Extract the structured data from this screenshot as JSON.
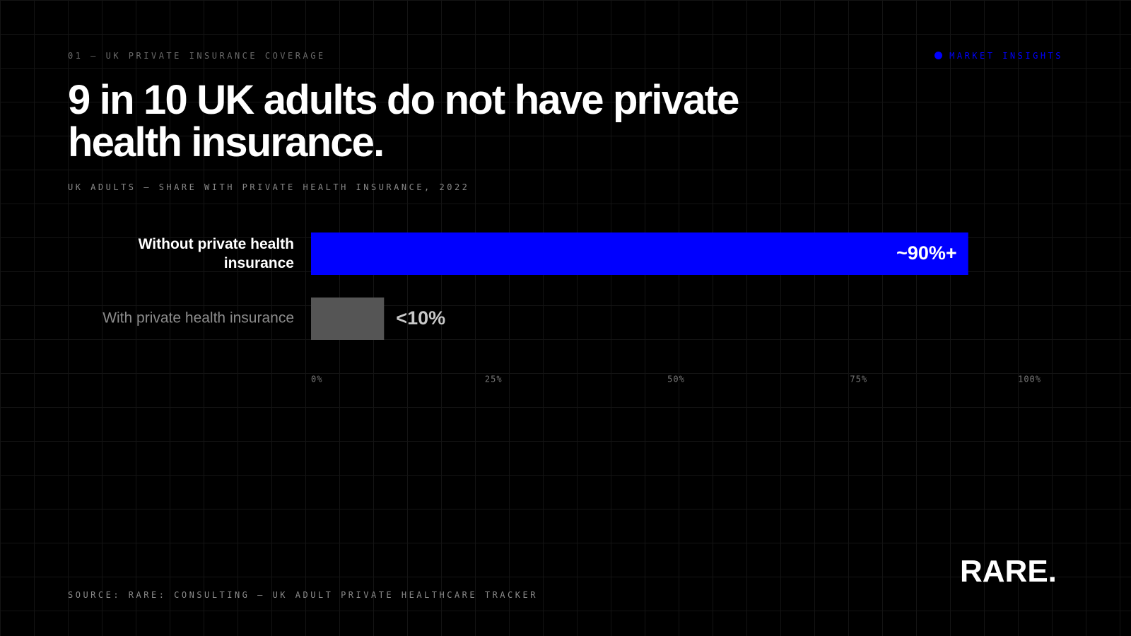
{
  "eyebrow": "01 — UK PRIVATE INSURANCE COVERAGE",
  "tag": "MARKET INSIGHTS",
  "source": "SOURCE: RARE: CONSULTING — UK ADULT PRIVATE HEALTHCARE TRACKER",
  "logo": "RARE.",
  "chart_data": {
    "type": "barh",
    "title": "9 in 10 UK adults do not have private health insurance.",
    "subtitle": "UK ADULTS — SHARE WITH PRIVATE HEALTH INSURANCE, 2022",
    "categories": [
      "Without private health insurance",
      "With private health insurance"
    ],
    "values": [
      90,
      10
    ],
    "value_labels": [
      "~90%+",
      "<10%"
    ],
    "colors": [
      "#0000ff",
      "#555555"
    ],
    "xlim": [
      0,
      100
    ],
    "xticks": [
      {
        "value": 0,
        "label": "0%"
      },
      {
        "value": 25,
        "label": "25%"
      },
      {
        "value": 50,
        "label": "50%"
      },
      {
        "value": 75,
        "label": "75%"
      },
      {
        "value": 100,
        "label": "100%"
      }
    ]
  }
}
